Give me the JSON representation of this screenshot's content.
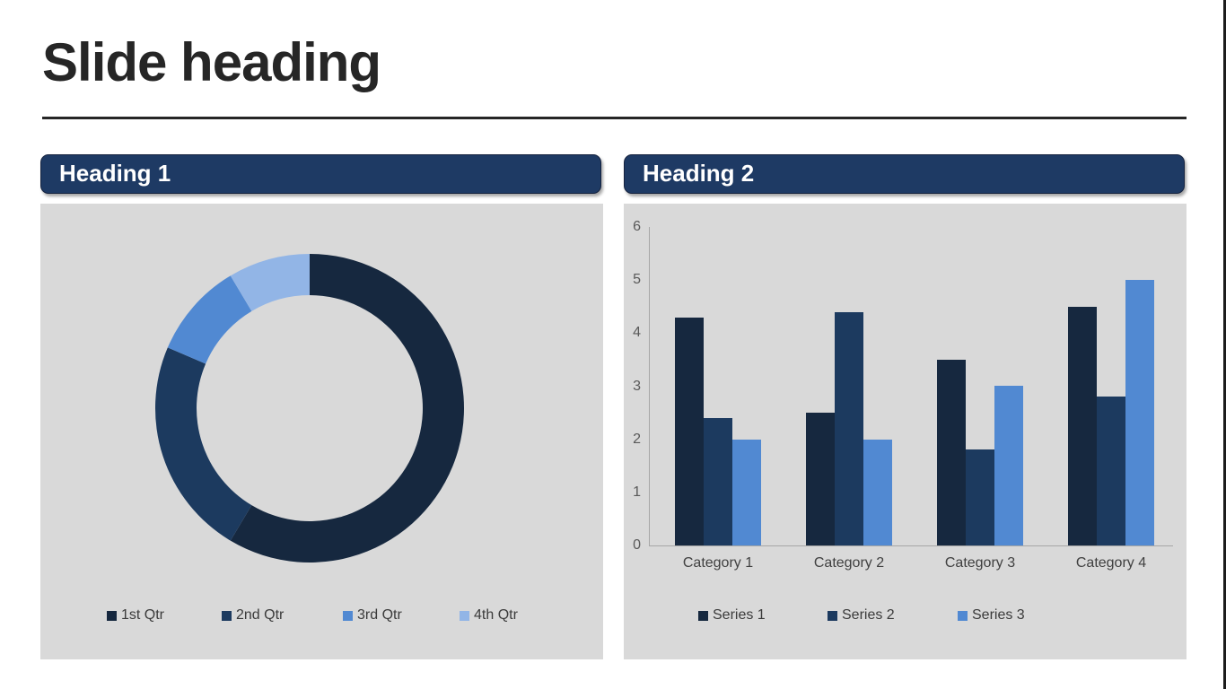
{
  "slide": {
    "title": "Slide heading",
    "border_color": "#1C1C1C"
  },
  "panels": {
    "left": {
      "heading": "Heading 1"
    },
    "right": {
      "heading": "Heading 2"
    }
  },
  "colors": {
    "header_bg": "#1E3A64",
    "panel_bg": "#D9D9D9",
    "title_text": "#262626",
    "axis_line": "#A6A6A6",
    "tick_text": "#595959",
    "label_text": "#404040",
    "series1": "#16283F",
    "series2": "#1C3A5F",
    "series3": "#5189D2",
    "series4": "#92B5E6"
  },
  "chart_data": [
    {
      "type": "pie",
      "subtype": "donut",
      "panel": "Heading 1",
      "labels": [
        "1st Qtr",
        "2nd Qtr",
        "3rd Qtr",
        "4th Qtr"
      ],
      "values": [
        8.2,
        3.2,
        1.4,
        1.2
      ],
      "colors": [
        "#16283F",
        "#1C3A5F",
        "#5189D2",
        "#92B5E6"
      ],
      "donut_hole_ratio": 0.73,
      "start_angle_deg": 0,
      "legend_position": "bottom"
    },
    {
      "type": "bar",
      "panel": "Heading 2",
      "categories": [
        "Category 1",
        "Category 2",
        "Category 3",
        "Category 4"
      ],
      "series": [
        {
          "name": "Series 1",
          "color": "#16283F",
          "values": [
            4.3,
            2.5,
            3.5,
            4.5
          ]
        },
        {
          "name": "Series 2",
          "color": "#1C3A5F",
          "values": [
            2.4,
            4.4,
            1.8,
            2.8
          ]
        },
        {
          "name": "Series 3",
          "color": "#5189D2",
          "values": [
            2.0,
            2.0,
            3.0,
            5.0
          ]
        }
      ],
      "xlabel": "",
      "ylabel": "",
      "ylim": [
        0,
        6
      ],
      "yticks": [
        0,
        1,
        2,
        3,
        4,
        5,
        6
      ],
      "grid": false,
      "legend_position": "bottom"
    }
  ]
}
